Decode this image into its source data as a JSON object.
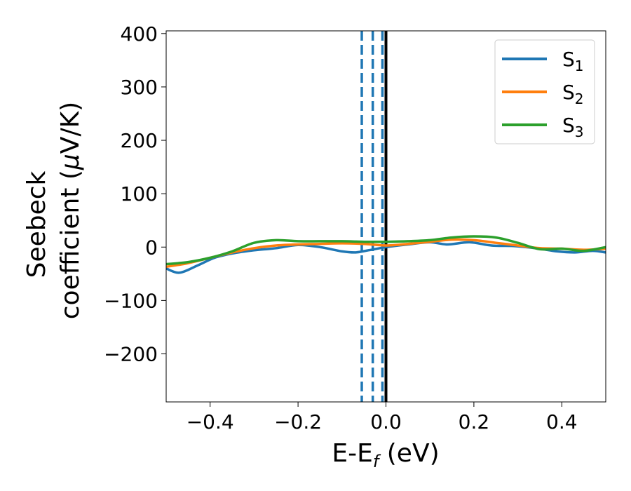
{
  "chart_data": {
    "type": "line",
    "xlabel": {
      "main": "E-E",
      "sub": "f",
      "unit": " (eV)"
    },
    "ylabel": {
      "line1": "Seebeck",
      "line2_prefix": "coefficient  (",
      "mu": "μ",
      "line2_suffix": "V/K)"
    },
    "xlim": [
      -0.5,
      0.5
    ],
    "ylim": [
      -290,
      405
    ],
    "xticks": [
      -0.4,
      -0.2,
      0.0,
      0.2,
      0.4
    ],
    "xtick_labels": [
      "−0.4",
      "−0.2",
      "0.0",
      "0.2",
      "0.4"
    ],
    "yticks": [
      400,
      300,
      200,
      100,
      0,
      -100,
      -200
    ],
    "ytick_labels": [
      "400",
      "300",
      "200",
      "100",
      "0",
      "−100",
      "−200"
    ],
    "legend_position": "top-right",
    "series": [
      {
        "name": "S",
        "subscript": "1",
        "color": "#1f77b4",
        "x": [
          -0.5,
          -0.47,
          -0.43,
          -0.39,
          -0.35,
          -0.3,
          -0.25,
          -0.2,
          -0.15,
          -0.1,
          -0.07,
          -0.04,
          0.0,
          0.05,
          0.1,
          0.14,
          0.19,
          0.24,
          0.29,
          0.34,
          0.39,
          0.43,
          0.47,
          0.5
        ],
        "y": [
          -40,
          -48,
          -35,
          -20,
          -12,
          -6,
          -2,
          4,
          0,
          -8,
          -10,
          -6,
          0,
          5,
          9,
          5,
          9,
          3,
          2,
          -2,
          -8,
          -10,
          -7,
          -10
        ]
      },
      {
        "name": "S",
        "subscript": "2",
        "color": "#ff7f0e",
        "x": [
          -0.5,
          -0.45,
          -0.4,
          -0.35,
          -0.3,
          -0.25,
          -0.2,
          -0.15,
          -0.1,
          -0.05,
          0.0,
          0.05,
          0.1,
          0.15,
          0.2,
          0.25,
          0.3,
          0.35,
          0.4,
          0.45,
          0.5
        ],
        "y": [
          -37,
          -30,
          -20,
          -10,
          -2,
          3,
          5,
          6,
          7,
          6,
          3,
          6,
          10,
          14,
          13,
          8,
          3,
          -2,
          -3,
          -5,
          -3
        ]
      },
      {
        "name": "S",
        "subscript": "3",
        "color": "#2ca02c",
        "x": [
          -0.5,
          -0.45,
          -0.4,
          -0.35,
          -0.3,
          -0.25,
          -0.2,
          -0.15,
          -0.1,
          -0.05,
          0.0,
          0.05,
          0.1,
          0.15,
          0.2,
          0.25,
          0.3,
          0.35,
          0.4,
          0.45,
          0.5
        ],
        "y": [
          -32,
          -28,
          -20,
          -8,
          8,
          13,
          11,
          11,
          11,
          10,
          10,
          11,
          13,
          18,
          20,
          18,
          8,
          -4,
          -3,
          -7,
          0
        ]
      }
    ],
    "vlines": [
      {
        "x": -0.055,
        "style": "dashed",
        "color": "#1f77b4"
      },
      {
        "x": -0.03,
        "style": "dashed",
        "color": "#1f77b4"
      },
      {
        "x": -0.008,
        "style": "dashed",
        "color": "#1f77b4"
      },
      {
        "x": 0.0,
        "style": "solid",
        "color": "#000000"
      }
    ]
  }
}
